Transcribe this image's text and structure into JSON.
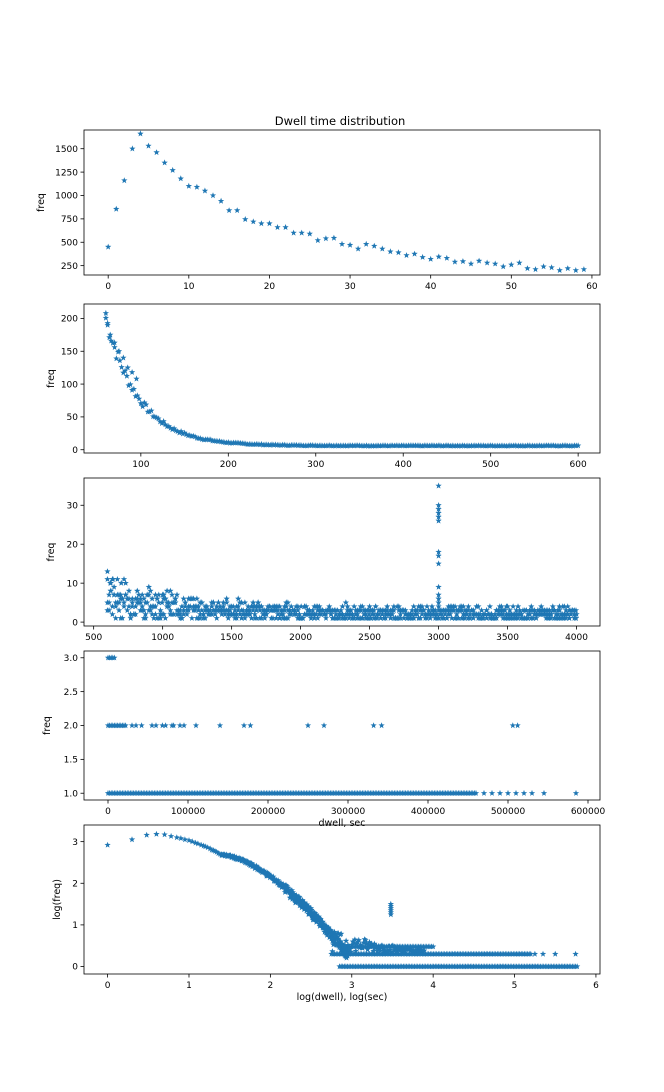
{
  "figure": {
    "title": "Dwell time distribution"
  },
  "colors": {
    "series": "#1f77b4"
  },
  "chart_data": [
    {
      "type": "scatter",
      "title": "Dwell time distribution",
      "xlabel": "",
      "ylabel": "freq",
      "xlim": [
        -3,
        61
      ],
      "ylim": [
        150,
        1700
      ],
      "xticks": [
        0,
        10,
        20,
        30,
        40,
        50,
        60
      ],
      "yticks": [
        250,
        500,
        750,
        1000,
        1250,
        1500
      ],
      "points": [
        [
          0,
          450
        ],
        [
          1,
          855
        ],
        [
          2,
          1160
        ],
        [
          3,
          1500
        ],
        [
          4,
          1660
        ],
        [
          5,
          1530
        ],
        [
          6,
          1460
        ],
        [
          7,
          1350
        ],
        [
          8,
          1270
        ],
        [
          9,
          1180
        ],
        [
          10,
          1100
        ],
        [
          11,
          1090
        ],
        [
          12,
          1050
        ],
        [
          13,
          1000
        ],
        [
          14,
          940
        ],
        [
          15,
          840
        ],
        [
          16,
          840
        ],
        [
          17,
          745
        ],
        [
          18,
          720
        ],
        [
          19,
          700
        ],
        [
          20,
          700
        ],
        [
          21,
          660
        ],
        [
          22,
          660
        ],
        [
          23,
          600
        ],
        [
          24,
          600
        ],
        [
          25,
          590
        ],
        [
          26,
          520
        ],
        [
          27,
          540
        ],
        [
          28,
          545
        ],
        [
          29,
          480
        ],
        [
          30,
          470
        ],
        [
          31,
          430
        ],
        [
          32,
          480
        ],
        [
          33,
          460
        ],
        [
          34,
          430
        ],
        [
          35,
          400
        ],
        [
          36,
          390
        ],
        [
          37,
          360
        ],
        [
          38,
          375
        ],
        [
          39,
          340
        ],
        [
          40,
          320
        ],
        [
          41,
          345
        ],
        [
          42,
          330
        ],
        [
          43,
          290
        ],
        [
          44,
          295
        ],
        [
          45,
          270
        ],
        [
          46,
          300
        ],
        [
          47,
          280
        ],
        [
          48,
          270
        ],
        [
          49,
          240
        ],
        [
          50,
          260
        ],
        [
          51,
          280
        ],
        [
          52,
          220
        ],
        [
          53,
          210
        ],
        [
          54,
          240
        ],
        [
          55,
          230
        ],
        [
          56,
          200
        ],
        [
          57,
          220
        ],
        [
          58,
          200
        ],
        [
          59,
          210
        ]
      ]
    },
    {
      "type": "scatter",
      "xlabel": "",
      "ylabel": "freq",
      "xlim": [
        35,
        625
      ],
      "ylim": [
        -5,
        222
      ],
      "xticks": [
        100,
        200,
        300,
        400,
        500,
        600
      ],
      "yticks": [
        0,
        50,
        100,
        150,
        200
      ],
      "generator": {
        "x_range": [
          60,
          600
        ],
        "step": 2,
        "a": 195,
        "decay": 38,
        "floor": 6,
        "slope": 0.01,
        "noise": 0.3
      },
      "extra_points": [
        [
          60,
          208
        ],
        [
          62,
          190
        ],
        [
          65,
          175
        ],
        [
          70,
          163
        ],
        [
          75,
          150
        ],
        [
          80,
          140
        ],
        [
          85,
          125
        ],
        [
          90,
          118
        ],
        [
          95,
          108
        ]
      ]
    },
    {
      "type": "scatter",
      "xlabel": "",
      "ylabel": "freq",
      "xlim": [
        430,
        4170
      ],
      "ylim": [
        -1,
        37
      ],
      "xticks": [
        500,
        1000,
        1500,
        2000,
        2500,
        3000,
        3500,
        4000
      ],
      "yticks": [
        0,
        10,
        20,
        30
      ],
      "generator": {
        "x_range": [
          600,
          4000
        ],
        "step": 12,
        "a": 8,
        "decay": 500,
        "floor": 1.2,
        "noise": 2.5
      },
      "extra_points": [
        [
          3000,
          35
        ],
        [
          3000,
          30
        ],
        [
          3000,
          29
        ],
        [
          3000,
          28
        ],
        [
          3000,
          27
        ],
        [
          3000,
          26
        ],
        [
          3000,
          18
        ],
        [
          3000,
          17
        ],
        [
          3000,
          15
        ],
        [
          3000,
          9
        ],
        [
          3000,
          7
        ],
        [
          3000,
          6
        ],
        [
          3000,
          5
        ],
        [
          3000,
          4
        ],
        [
          600,
          11
        ],
        [
          620,
          10
        ],
        [
          640,
          11
        ],
        [
          700,
          10
        ],
        [
          1000,
          7
        ],
        [
          2500,
          4
        ],
        [
          3500,
          4
        ],
        [
          4000,
          2
        ]
      ]
    },
    {
      "type": "scatter",
      "xlabel": "dwell, sec",
      "ylabel": "freq",
      "xlim": [
        -30000,
        615000
      ],
      "ylim": [
        0.9,
        3.1
      ],
      "xticks": [
        0,
        100000,
        200000,
        300000,
        400000,
        500000,
        600000
      ],
      "yticks": [
        1.0,
        1.5,
        2.0,
        2.5,
        3.0
      ],
      "lines": [
        {
          "y": 1.0,
          "x_start": 0,
          "x_end": 460000
        },
        {
          "y": 2.0,
          "x_start": 0,
          "x_end": 22000
        },
        {
          "y": 3.0,
          "x_start": 0,
          "x_end": 8000
        }
      ],
      "points": [
        [
          470000,
          1
        ],
        [
          480000,
          1
        ],
        [
          490000,
          1
        ],
        [
          500000,
          1
        ],
        [
          510000,
          1
        ],
        [
          520000,
          1
        ],
        [
          530000,
          1
        ],
        [
          545000,
          1
        ],
        [
          585000,
          1
        ],
        [
          30000,
          2
        ],
        [
          35000,
          2
        ],
        [
          42000,
          2
        ],
        [
          55000,
          2
        ],
        [
          60000,
          2
        ],
        [
          68000,
          2
        ],
        [
          72000,
          2
        ],
        [
          80000,
          2
        ],
        [
          82000,
          2
        ],
        [
          90000,
          2
        ],
        [
          95000,
          2
        ],
        [
          110000,
          2
        ],
        [
          140000,
          2
        ],
        [
          170000,
          2
        ],
        [
          178000,
          2
        ],
        [
          250000,
          2
        ],
        [
          270000,
          2
        ],
        [
          332000,
          2
        ],
        [
          342000,
          2
        ],
        [
          506000,
          2
        ],
        [
          512000,
          2
        ]
      ]
    },
    {
      "type": "scatter",
      "xlabel": "log(dwell), log(sec)",
      "ylabel": "log(freq)",
      "xlim": [
        -0.29,
        6.05
      ],
      "ylim": [
        -0.18,
        3.4
      ],
      "xticks": [
        0,
        1,
        2,
        3,
        4,
        5,
        6
      ],
      "yticks": [
        0,
        1,
        2,
        3
      ],
      "points": [
        [
          0,
          2.92
        ],
        [
          0.3,
          3.05
        ],
        [
          0.48,
          3.16
        ],
        [
          0.6,
          3.18
        ],
        [
          0.7,
          3.17
        ],
        [
          0.78,
          3.13
        ],
        [
          0.85,
          3.1
        ],
        [
          0.9,
          3.08
        ],
        [
          0.95,
          3.05
        ],
        [
          1.0,
          3.03
        ],
        [
          1.04,
          3.0
        ],
        [
          1.08,
          2.97
        ],
        [
          1.11,
          2.95
        ],
        [
          1.15,
          2.92
        ],
        [
          1.18,
          2.9
        ],
        [
          1.2,
          2.88
        ],
        [
          1.23,
          2.86
        ],
        [
          1.26,
          2.83
        ],
        [
          1.28,
          2.8
        ],
        [
          1.3,
          2.79
        ],
        [
          1.32,
          2.77
        ],
        [
          1.34,
          2.75
        ],
        [
          1.36,
          2.72
        ],
        [
          1.38,
          2.7
        ],
        [
          1.4,
          2.68
        ],
        [
          3.48,
          1.5
        ],
        [
          3.48,
          1.45
        ],
        [
          3.48,
          1.4
        ],
        [
          3.48,
          1.35
        ],
        [
          3.48,
          1.3
        ],
        [
          3.48,
          1.25
        ],
        [
          5.75,
          0.3
        ],
        [
          5.5,
          0.3
        ],
        [
          5.35,
          0.3
        ],
        [
          5.25,
          0.3
        ]
      ],
      "generator": {
        "x_range": [
          1.4,
          2.95
        ],
        "step": 0.006,
        "curve_start": 2.68,
        "curve_end": 0.3,
        "curve_power": 1.6,
        "noise": 0.08
      },
      "lines": [
        {
          "y": 0.0,
          "x_start": 2.85,
          "x_end": 5.77
        },
        {
          "y": 0.301,
          "x_start": 2.75,
          "x_end": 5.2
        },
        {
          "y": 0.477,
          "x_start": 2.95,
          "x_end": 4.0
        }
      ]
    }
  ]
}
